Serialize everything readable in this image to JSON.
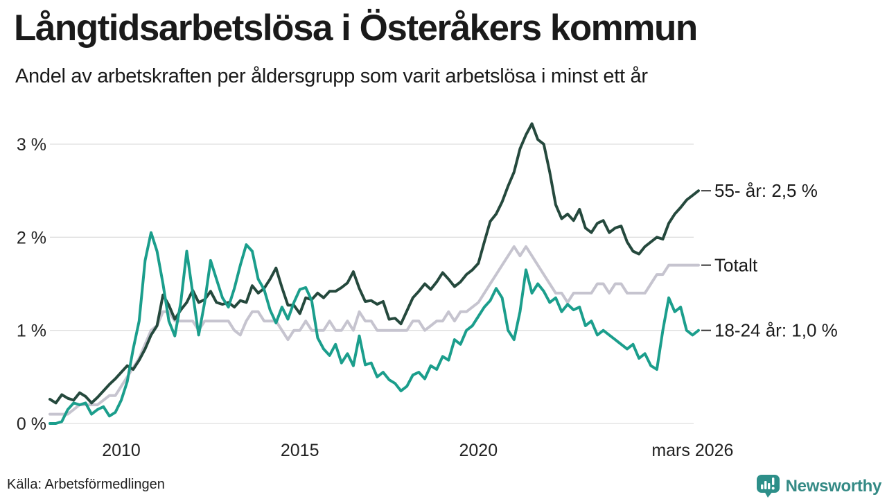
{
  "header": {
    "title": "Långtidsarbetslösa i Österåkers kommun",
    "subtitle": "Andel av arbetskraften per åldersgrupp som varit arbetslösa i minst ett år"
  },
  "footer": {
    "source": "Källa: Arbetsförmedlingen",
    "brand": "Newsworthy",
    "brand_color": "#348a85",
    "brand_bubble_color": "#2d8f89"
  },
  "chart_data": {
    "type": "line",
    "title": "Långtidsarbetslösa i Österåkers kommun",
    "subtitle": "Andel av arbetskraften per åldersgrupp som varit arbetslösa i minst ett år",
    "unit": "% av arbetskraften",
    "x_start": 2008.0,
    "x_step": 0.166667,
    "xlim": [
      2008.0,
      2026.17
    ],
    "ylim": [
      0,
      3.35
    ],
    "grid": true,
    "grid_color": "#dfdfdf",
    "y_axis": {
      "ticks": [
        {
          "value": 0,
          "label": "0 %"
        },
        {
          "value": 1,
          "label": "1 %"
        },
        {
          "value": 2,
          "label": "2 %"
        },
        {
          "value": 3,
          "label": "3 %"
        }
      ]
    },
    "x_axis": {
      "ticks": [
        {
          "value": 2010,
          "label": "2010"
        },
        {
          "value": 2015,
          "label": "2015"
        },
        {
          "value": 2020,
          "label": "2020"
        },
        {
          "value": 2026.0,
          "label": "mars 2026"
        }
      ]
    },
    "legend_position": "end-of-line-labels",
    "series": [
      {
        "name": "Totalt",
        "end_label": "Totalt",
        "end_value": 1.7,
        "color": "#c6c4cf",
        "values": [
          0.1,
          0.1,
          0.1,
          0.1,
          0.15,
          0.2,
          0.2,
          0.2,
          0.2,
          0.25,
          0.3,
          0.3,
          0.4,
          0.5,
          0.6,
          0.7,
          0.85,
          1.0,
          1.05,
          1.2,
          1.2,
          1.1,
          1.1,
          1.1,
          1.1,
          1.0,
          1.1,
          1.1,
          1.1,
          1.1,
          1.1,
          1.0,
          0.95,
          1.1,
          1.2,
          1.2,
          1.1,
          1.1,
          1.1,
          1.0,
          0.9,
          1.0,
          1.0,
          1.1,
          1.0,
          1.0,
          1.0,
          1.1,
          1.0,
          1.0,
          1.1,
          1.0,
          1.2,
          1.1,
          1.1,
          1.0,
          1.0,
          1.0,
          1.0,
          1.0,
          1.0,
          1.1,
          1.1,
          1.0,
          1.05,
          1.1,
          1.1,
          1.2,
          1.1,
          1.2,
          1.2,
          1.25,
          1.3,
          1.4,
          1.5,
          1.6,
          1.7,
          1.8,
          1.9,
          1.8,
          1.9,
          1.8,
          1.7,
          1.6,
          1.5,
          1.4,
          1.4,
          1.3,
          1.4,
          1.4,
          1.4,
          1.4,
          1.5,
          1.5,
          1.4,
          1.5,
          1.5,
          1.4,
          1.4,
          1.4,
          1.4,
          1.5,
          1.6,
          1.6,
          1.7,
          1.7,
          1.7,
          1.7,
          1.7,
          1.7
        ]
      },
      {
        "name": "55- år",
        "end_label": "55- år: 2,5 %",
        "end_value": 2.5,
        "color": "#25493d",
        "values": [
          0.26,
          0.22,
          0.31,
          0.27,
          0.25,
          0.33,
          0.29,
          0.22,
          0.28,
          0.35,
          0.42,
          0.48,
          0.55,
          0.62,
          0.58,
          0.68,
          0.8,
          0.95,
          1.05,
          1.38,
          1.27,
          1.12,
          1.22,
          1.3,
          1.43,
          1.3,
          1.33,
          1.42,
          1.3,
          1.28,
          1.3,
          1.25,
          1.32,
          1.3,
          1.48,
          1.4,
          1.45,
          1.55,
          1.67,
          1.46,
          1.27,
          1.27,
          1.18,
          1.35,
          1.33,
          1.4,
          1.35,
          1.42,
          1.42,
          1.46,
          1.51,
          1.63,
          1.45,
          1.31,
          1.32,
          1.28,
          1.31,
          1.12,
          1.13,
          1.07,
          1.21,
          1.35,
          1.42,
          1.5,
          1.44,
          1.52,
          1.62,
          1.55,
          1.47,
          1.52,
          1.6,
          1.65,
          1.72,
          1.95,
          2.17,
          2.25,
          2.38,
          2.55,
          2.7,
          2.95,
          3.1,
          3.22,
          3.05,
          3.0,
          2.7,
          2.35,
          2.2,
          2.25,
          2.18,
          2.3,
          2.1,
          2.05,
          2.15,
          2.18,
          2.05,
          2.1,
          2.12,
          1.95,
          1.85,
          1.82,
          1.9,
          1.95,
          2.0,
          1.98,
          2.15,
          2.25,
          2.32,
          2.4,
          2.45,
          2.5
        ]
      },
      {
        "name": "18-24 år",
        "end_label": "18-24 år: 1,0 %",
        "end_value": 1.0,
        "color": "#1b9e8c",
        "values": [
          0.0,
          0.0,
          0.02,
          0.15,
          0.22,
          0.2,
          0.22,
          0.1,
          0.15,
          0.18,
          0.08,
          0.12,
          0.25,
          0.45,
          0.8,
          1.1,
          1.75,
          2.05,
          1.85,
          1.5,
          1.1,
          0.94,
          1.3,
          1.85,
          1.4,
          0.95,
          1.3,
          1.75,
          1.55,
          1.35,
          1.25,
          1.45,
          1.7,
          1.92,
          1.85,
          1.55,
          1.44,
          1.22,
          1.08,
          1.25,
          1.12,
          1.3,
          1.44,
          1.46,
          1.32,
          0.92,
          0.8,
          0.73,
          0.85,
          0.65,
          0.75,
          0.62,
          0.94,
          0.63,
          0.65,
          0.5,
          0.55,
          0.47,
          0.43,
          0.35,
          0.4,
          0.52,
          0.55,
          0.48,
          0.62,
          0.58,
          0.72,
          0.68,
          0.9,
          0.85,
          1.0,
          1.05,
          1.15,
          1.25,
          1.32,
          1.45,
          1.35,
          1.0,
          0.9,
          1.2,
          1.65,
          1.4,
          1.5,
          1.42,
          1.3,
          1.35,
          1.2,
          1.28,
          1.22,
          1.25,
          1.05,
          1.1,
          0.95,
          1.0,
          0.95,
          0.9,
          0.85,
          0.8,
          0.85,
          0.7,
          0.75,
          0.62,
          0.58,
          1.0,
          1.35,
          1.2,
          1.25,
          1.0,
          0.95,
          1.0
        ]
      }
    ]
  }
}
